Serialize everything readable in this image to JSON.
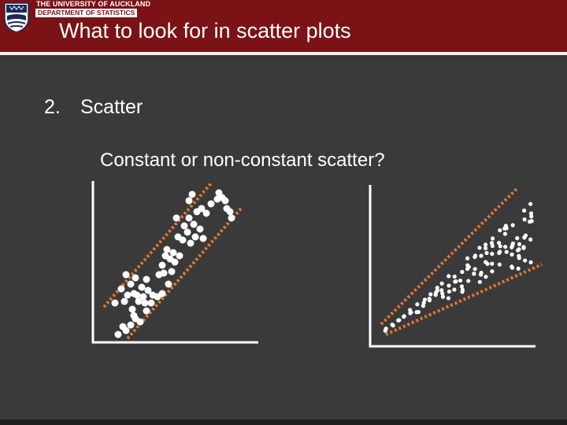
{
  "header": {
    "university": "THE UNIVERSITY OF AUCKLAND",
    "department": "DEPARTMENT OF STATISTICS",
    "title": "What to look for in scatter plots"
  },
  "content": {
    "point_number": "2.",
    "point_label": "Scatter",
    "question": "Constant or non-constant scatter?"
  },
  "colors": {
    "header_bg": "#7a1216",
    "slide_bg": "#3a3a3a",
    "points": "#ffffff",
    "guide_lines": "#e0772f"
  }
}
